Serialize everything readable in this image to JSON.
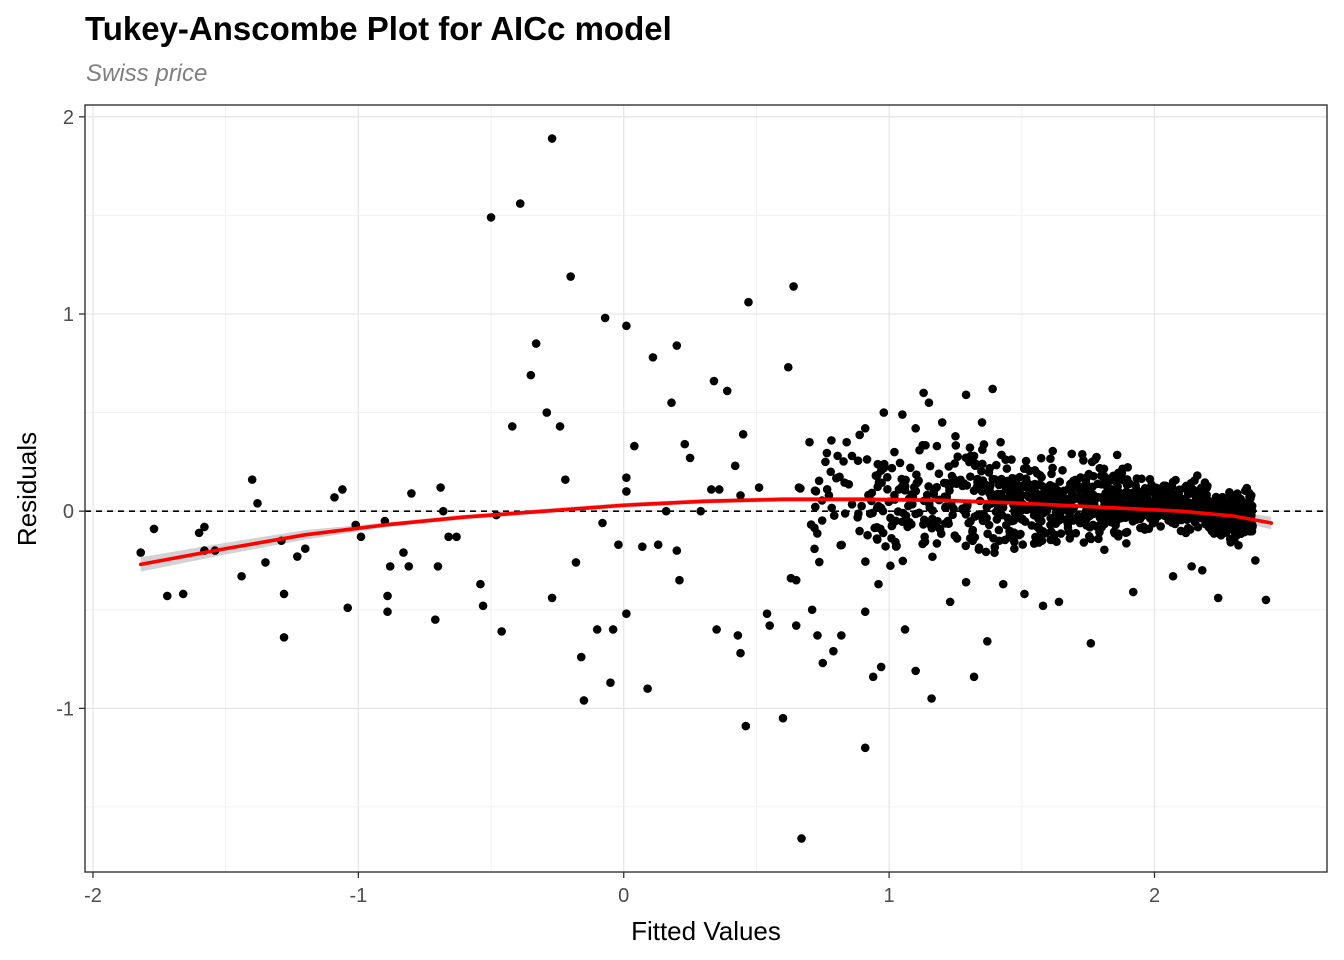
{
  "title": "Tukey-Anscombe Plot for AICc model",
  "subtitle": "Swiss price",
  "chart_data": {
    "type": "scatter",
    "title": "Tukey-Anscombe Plot for AICc model",
    "subtitle": "Swiss price",
    "xlabel": "Fitted Values",
    "ylabel": "Residuals",
    "xlim": [
      -2.03,
      2.65
    ],
    "ylim": [
      -1.83,
      2.06
    ],
    "x_ticks": [
      -2,
      -1,
      0,
      1,
      2
    ],
    "x_tick_labels": [
      "-2",
      "-1",
      "0",
      "1",
      "2"
    ],
    "y_ticks": [
      -1,
      0,
      1,
      2
    ],
    "y_tick_labels": [
      "-1",
      "0",
      "1",
      "2"
    ],
    "grid": true,
    "reference_line": {
      "y": 0,
      "style": "dashed",
      "color": "#000000"
    },
    "smooth_curve": {
      "color": "#ff0000",
      "band_color": "#bfbfbf",
      "x": [
        -1.82,
        -1.5,
        -1.2,
        -0.9,
        -0.6,
        -0.3,
        0.0,
        0.3,
        0.6,
        0.9,
        1.2,
        1.5,
        1.8,
        2.1,
        2.3,
        2.44
      ],
      "y": [
        -0.27,
        -0.19,
        -0.12,
        -0.07,
        -0.03,
        0.0,
        0.03,
        0.05,
        0.06,
        0.06,
        0.055,
        0.04,
        0.02,
        0.0,
        -0.025,
        -0.06
      ]
    },
    "points": [
      [
        -1.82,
        -0.21
      ],
      [
        -1.77,
        -0.09
      ],
      [
        -1.72,
        -0.43
      ],
      [
        -1.66,
        -0.42
      ],
      [
        -1.6,
        -0.11
      ],
      [
        -1.58,
        -0.08
      ],
      [
        -1.58,
        -0.2
      ],
      [
        -1.54,
        -0.2
      ],
      [
        -1.44,
        -0.33
      ],
      [
        -1.4,
        0.16
      ],
      [
        -1.38,
        0.04
      ],
      [
        -1.35,
        -0.26
      ],
      [
        -1.29,
        -0.15
      ],
      [
        -1.28,
        -0.42
      ],
      [
        -1.28,
        -0.64
      ],
      [
        -1.23,
        -0.23
      ],
      [
        -1.2,
        -0.19
      ],
      [
        -1.09,
        0.07
      ],
      [
        -1.06,
        0.11
      ],
      [
        -1.04,
        -0.49
      ],
      [
        -1.01,
        -0.07
      ],
      [
        -0.99,
        -0.13
      ],
      [
        -0.9,
        -0.05
      ],
      [
        -0.89,
        -0.43
      ],
      [
        -0.89,
        -0.51
      ],
      [
        -0.88,
        -0.28
      ],
      [
        -0.83,
        -0.21
      ],
      [
        -0.81,
        -0.28
      ],
      [
        -0.8,
        0.09
      ],
      [
        -0.71,
        -0.55
      ],
      [
        -0.7,
        -0.28
      ],
      [
        -0.69,
        0.12
      ],
      [
        -0.68,
        0.0
      ],
      [
        -0.66,
        -0.13
      ],
      [
        -0.63,
        -0.13
      ],
      [
        -0.54,
        -0.37
      ],
      [
        -0.53,
        -0.48
      ],
      [
        -0.5,
        1.49
      ],
      [
        -0.48,
        -0.02
      ],
      [
        -0.46,
        -0.61
      ],
      [
        -0.42,
        0.43
      ],
      [
        -0.39,
        1.56
      ],
      [
        -0.35,
        0.69
      ],
      [
        -0.33,
        0.85
      ],
      [
        -0.29,
        0.5
      ],
      [
        -0.27,
        1.89
      ],
      [
        -0.27,
        -0.44
      ],
      [
        -0.24,
        0.43
      ],
      [
        -0.22,
        0.16
      ],
      [
        -0.2,
        1.19
      ],
      [
        -0.18,
        -0.26
      ],
      [
        -0.16,
        -0.74
      ],
      [
        -0.15,
        -0.96
      ],
      [
        -0.1,
        -0.6
      ],
      [
        -0.08,
        -0.06
      ],
      [
        -0.07,
        0.98
      ],
      [
        -0.05,
        -0.87
      ],
      [
        -0.04,
        -0.6
      ],
      [
        -0.02,
        -0.17
      ],
      [
        0.01,
        0.17
      ],
      [
        0.01,
        0.94
      ],
      [
        0.01,
        0.1
      ],
      [
        0.01,
        -0.52
      ],
      [
        0.04,
        0.33
      ],
      [
        0.07,
        -0.18
      ],
      [
        0.09,
        -0.9
      ],
      [
        0.11,
        0.78
      ],
      [
        0.13,
        -0.17
      ],
      [
        0.16,
        0.0
      ],
      [
        0.18,
        0.55
      ],
      [
        0.2,
        -0.2
      ],
      [
        0.2,
        0.84
      ],
      [
        0.21,
        -0.35
      ],
      [
        0.23,
        0.34
      ],
      [
        0.25,
        0.27
      ],
      [
        0.29,
        0.0
      ],
      [
        0.33,
        0.11
      ],
      [
        0.34,
        0.66
      ],
      [
        0.35,
        -0.6
      ],
      [
        0.36,
        0.11
      ],
      [
        0.39,
        0.61
      ],
      [
        0.42,
        0.23
      ],
      [
        0.43,
        -0.63
      ],
      [
        0.44,
        -0.72
      ],
      [
        0.44,
        0.08
      ],
      [
        0.45,
        0.39
      ],
      [
        0.46,
        -1.09
      ],
      [
        0.47,
        1.06
      ],
      [
        0.51,
        0.12
      ],
      [
        0.54,
        -0.52
      ],
      [
        0.55,
        -0.58
      ],
      [
        0.6,
        -1.05
      ],
      [
        0.62,
        0.73
      ],
      [
        0.63,
        -0.34
      ],
      [
        0.65,
        -0.35
      ],
      [
        0.65,
        -0.58
      ],
      [
        0.64,
        1.14
      ],
      [
        0.66,
        0.12
      ],
      [
        0.67,
        -1.66
      ],
      [
        0.71,
        -0.5
      ],
      [
        0.73,
        -0.63
      ],
      [
        0.75,
        -0.77
      ],
      [
        0.79,
        -0.71
      ],
      [
        0.82,
        -0.63
      ],
      [
        0.91,
        -1.2
      ],
      [
        0.91,
        -0.51
      ],
      [
        0.94,
        -0.84
      ],
      [
        0.97,
        -0.79
      ],
      [
        0.96,
        -0.37
      ],
      [
        1.06,
        -0.6
      ],
      [
        1.1,
        -0.81
      ],
      [
        1.16,
        -0.95
      ],
      [
        1.23,
        -0.46
      ],
      [
        1.29,
        -0.36
      ],
      [
        1.32,
        -0.84
      ],
      [
        1.37,
        -0.66
      ],
      [
        1.39,
        0.62
      ],
      [
        1.43,
        -0.37
      ],
      [
        1.51,
        -0.42
      ],
      [
        1.58,
        -0.48
      ],
      [
        1.64,
        -0.46
      ],
      [
        1.76,
        -0.67
      ],
      [
        1.92,
        -0.41
      ],
      [
        2.07,
        -0.33
      ],
      [
        2.14,
        -0.28
      ],
      [
        2.18,
        -0.3
      ],
      [
        2.24,
        -0.44
      ],
      [
        2.38,
        -0.25
      ],
      [
        2.42,
        -0.45
      ],
      [
        0.7,
        0.35
      ],
      [
        0.76,
        0.25
      ],
      [
        0.84,
        0.35
      ],
      [
        0.91,
        0.42
      ],
      [
        0.98,
        0.5
      ],
      [
        1.05,
        0.49
      ],
      [
        1.1,
        0.42
      ],
      [
        1.15,
        0.55
      ],
      [
        1.2,
        0.45
      ],
      [
        1.29,
        0.59
      ],
      [
        1.35,
        0.45
      ],
      [
        1.42,
        0.35
      ],
      [
        1.13,
        0.6
      ],
      [
        0.78,
        0.2
      ],
      [
        0.86,
        0.28
      ],
      [
        0.95,
        0.18
      ],
      [
        1.02,
        0.3
      ],
      [
        1.08,
        0.22
      ],
      [
        1.18,
        0.33
      ],
      [
        1.25,
        0.38
      ],
      [
        1.32,
        0.28
      ]
    ]
  }
}
